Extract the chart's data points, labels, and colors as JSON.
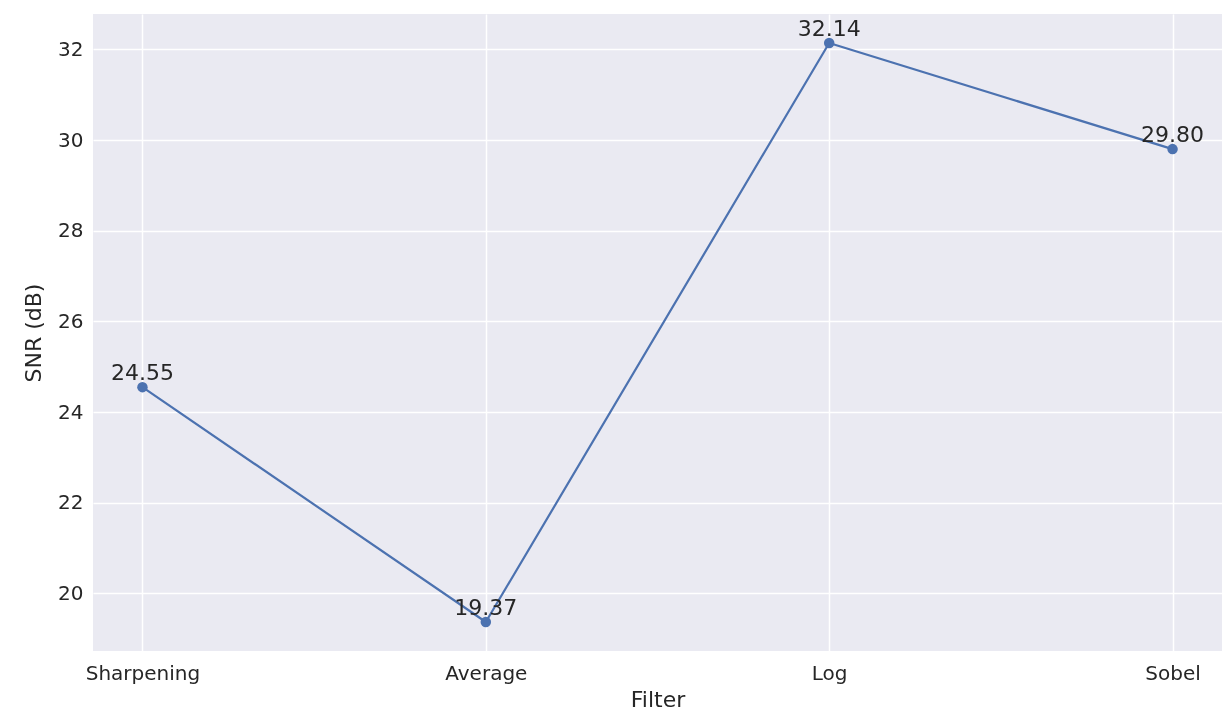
{
  "chart_data": {
    "type": "line",
    "xlabel": "Filter",
    "ylabel": "SNR (dB)",
    "categories": [
      "Sharpening",
      "Average",
      "Log",
      "Sobel"
    ],
    "series": [
      {
        "color": "#4c72b0",
        "values": [
          24.55,
          19.37,
          32.14,
          29.8
        ],
        "value_labels": [
          "24.55",
          "19.37",
          "32.14",
          "29.80"
        ]
      }
    ],
    "ylim": [
      18.73,
      32.78
    ],
    "yticks": [
      20,
      22,
      24,
      26,
      28,
      30,
      32
    ],
    "grid": true,
    "marker": "circle",
    "line_style": "solid"
  }
}
